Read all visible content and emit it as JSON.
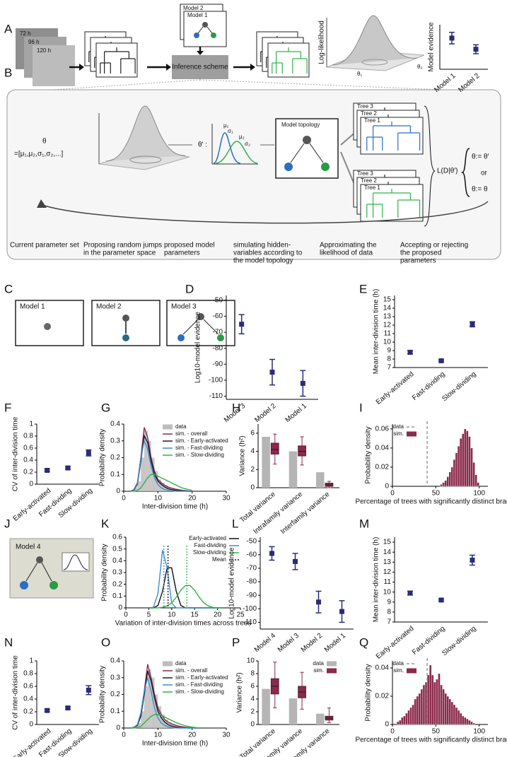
{
  "panel_labels": [
    "A",
    "B",
    "C",
    "D",
    "E",
    "F",
    "G",
    "H",
    "I",
    "J",
    "K",
    "L",
    "M",
    "N",
    "O",
    "P",
    "Q"
  ],
  "diagram_a": {
    "time_labels": [
      "72 h",
      "96 h",
      "120 h"
    ],
    "models": [
      "Model 2",
      "Model 1"
    ],
    "inference": "Inference scheme",
    "surface_label": "Log-likelihood",
    "theta1": "θ₁",
    "theta2": "θ₂"
  },
  "diagram_b": {
    "theta": "θ",
    "theta_vector": "=[μ₁,μ₂,σ₁,σ₂,...]",
    "theta_prime": "θ′ :",
    "gauss_labels": [
      "μ₁",
      "σ₁",
      "μ₂",
      "σ₂"
    ],
    "topology": "Model topology",
    "trees": [
      "Tree 3",
      "Tree 2",
      "Tree 1"
    ],
    "likelihood": "L(D|θ′)",
    "accept": "θ:= θ′",
    "or": "or",
    "reject": "θ:= θ",
    "captions": [
      [
        "Current parameter set"
      ],
      [
        "Proposing random jumps",
        "in the parameter space"
      ],
      [
        "proposed model",
        "parameters"
      ],
      [
        "simulating hidden-",
        "variables according to",
        "the model topology"
      ],
      [
        "Approximating the",
        "likelihood of data"
      ],
      [
        "Accepting or rejecting",
        "the proposed",
        "parameters"
      ]
    ]
  },
  "models_c": [
    "Model 1",
    "Model 2",
    "Model 3"
  ],
  "model_j": "Model 4",
  "chart_data": [
    {
      "type": "dot",
      "ylabel": "Model evidence",
      "categories": [
        "Model 1",
        "Model 2"
      ],
      "values": [
        0.7,
        0.45
      ],
      "errors": [
        0.13,
        0.1
      ],
      "ylim": [
        0,
        1
      ],
      "color": "#2b2b7a"
    },
    {
      "type": "dot",
      "ylabel": "Log10-model evidence",
      "categories": [
        "Model 3",
        "Model 2",
        "Model 1"
      ],
      "values": [
        -65,
        -95,
        -102
      ],
      "errors": [
        6,
        8,
        8
      ],
      "ylim": [
        -112,
        -47
      ],
      "yticks": [
        -50,
        -60,
        -70,
        -80,
        -90,
        -100,
        -110
      ],
      "color": "#2b2b7a"
    },
    {
      "type": "dot",
      "ylabel": "Mean inter-division time (h)",
      "categories": [
        "Early-activated",
        "Fast-dividing",
        "Slow-dividing"
      ],
      "values": [
        8.8,
        7.8,
        12.1
      ],
      "errors": [
        0.2,
        0.1,
        0.3
      ],
      "ylim": [
        7,
        15.5
      ],
      "yticks": [
        7,
        8,
        9,
        10,
        11,
        12,
        13,
        14,
        15
      ],
      "color": "#2b2b7a"
    },
    {
      "type": "dot",
      "ylabel": "CV of inter-division time",
      "categories": [
        "Early-activated",
        "Fast-dividing",
        "Slow-dividing"
      ],
      "values": [
        0.23,
        0.27,
        0.52
      ],
      "errors": [
        0.02,
        0.02,
        0.05
      ],
      "ylim": [
        0,
        1
      ],
      "yticks": [
        0,
        0.2,
        0.4,
        0.6,
        0.8,
        1
      ],
      "color": "#2b2b7a"
    },
    {
      "type": "hist",
      "ylabel": "Probability density",
      "xlabel": "Inter-division time (h)",
      "xlim": [
        0,
        30
      ],
      "xticks": [
        0,
        10,
        20,
        30
      ],
      "ylim": [
        0,
        0.4
      ],
      "yticks": [
        0,
        0.1,
        0.2,
        0.3,
        0.4
      ],
      "hist": {
        "name": "data",
        "color": "#bdbdbd",
        "bins": [
          2,
          3,
          4,
          5,
          6,
          7,
          8,
          9,
          10,
          11,
          12,
          13,
          14,
          15,
          16,
          17,
          18,
          19,
          20
        ],
        "counts": [
          0.005,
          0.02,
          0.06,
          0.2,
          0.36,
          0.3,
          0.2,
          0.12,
          0.07,
          0.05,
          0.035,
          0.025,
          0.02,
          0.015,
          0.01,
          0.008,
          0.005,
          0.003
        ]
      },
      "x": [
        2,
        3,
        4,
        5,
        6,
        7,
        8,
        9,
        10,
        11,
        12,
        13,
        14,
        15,
        16,
        17,
        18,
        19,
        20
      ],
      "series": [
        {
          "name": "sim. - overall",
          "color": "#8b2a4a",
          "values": [
            0,
            0.01,
            0.05,
            0.2,
            0.38,
            0.32,
            0.2,
            0.12,
            0.07,
            0.05,
            0.035,
            0.025,
            0.018,
            0.013,
            0.009,
            0.006,
            0.004,
            0.002,
            0.001
          ]
        },
        {
          "name": "sim. - Early-activated",
          "color": "#1a1a2e",
          "values": [
            0,
            0.005,
            0.04,
            0.18,
            0.33,
            0.29,
            0.18,
            0.1,
            0.06,
            0.04,
            0.025,
            0.015,
            0.01,
            0.006,
            0.004,
            0.002,
            0.001,
            0,
            0
          ]
        },
        {
          "name": "sim. - Fast-dividing",
          "color": "#3a8fd0",
          "values": [
            0,
            0.005,
            0.04,
            0.2,
            0.3,
            0.25,
            0.15,
            0.08,
            0.04,
            0.02,
            0.01,
            0.006,
            0.003,
            0.001,
            0,
            0,
            0,
            0,
            0
          ]
        },
        {
          "name": "sim. - Slow-dividing",
          "color": "#2fb34a",
          "values": [
            0,
            0,
            0.005,
            0.02,
            0.05,
            0.08,
            0.1,
            0.1,
            0.09,
            0.08,
            0.07,
            0.06,
            0.05,
            0.04,
            0.03,
            0.02,
            0.015,
            0.01,
            0.005
          ]
        }
      ]
    },
    {
      "type": "boxbar",
      "ylabel": "Variance (h²)",
      "categories": [
        "Total variance",
        "Intrafamily variance",
        "Interfamily variance"
      ],
      "ylim": [
        0,
        7
      ],
      "yticks": [
        0,
        2,
        4,
        6
      ],
      "bars": {
        "color": "#b5b5b5",
        "values": [
          5.6,
          4.0,
          1.7
        ]
      },
      "boxes": {
        "color": "#8b2a4a",
        "median": [
          4.2,
          4.0,
          0.3
        ],
        "q1": [
          3.7,
          3.5,
          0.15
        ],
        "q3": [
          4.9,
          4.6,
          0.5
        ],
        "low": [
          2.6,
          2.5,
          0
        ],
        "high": [
          5.9,
          5.6,
          0.7
        ]
      }
    },
    {
      "type": "hist",
      "ylabel": "Probability density",
      "xlabel": "Percentage of trees with significantly distinct branches",
      "xlim": [
        0,
        110
      ],
      "xticks": [
        0,
        50,
        100
      ],
      "ylim": [
        0,
        0.065
      ],
      "yticks": [
        0,
        0.02,
        0.04,
        0.06
      ],
      "reference": {
        "name": "data",
        "value": 40,
        "color": "#999999"
      },
      "hist": {
        "name": "sim.",
        "color": "#8b2a4a",
        "bins": [
          55,
          57.5,
          60,
          62.5,
          65,
          67.5,
          70,
          72.5,
          75,
          77.5,
          80,
          82.5,
          85,
          87.5,
          90,
          92.5,
          95,
          97.5,
          100
        ],
        "counts": [
          0.002,
          0.004,
          0.006,
          0.01,
          0.015,
          0.02,
          0.028,
          0.035,
          0.042,
          0.05,
          0.055,
          0.06,
          0.058,
          0.052,
          0.04,
          0.025,
          0.012,
          0.004
        ]
      }
    },
    {
      "type": "density",
      "ylabel": "Probability density",
      "xlabel": "Variation of inter-division times across trees",
      "xlim": [
        0,
        25
      ],
      "xticks": [
        0,
        5,
        10,
        15,
        20,
        25
      ],
      "ylim": [
        0,
        0.6
      ],
      "yticks": [
        0,
        0.1,
        0.2,
        0.3,
        0.4,
        0.5,
        0.6
      ],
      "x": [
        5,
        6,
        7,
        8,
        9,
        10,
        11,
        12,
        13,
        14,
        15,
        16,
        17,
        18,
        19,
        20,
        21
      ],
      "series": [
        {
          "name": "Early-activated",
          "color": "#111111",
          "values": [
            0,
            0,
            0.02,
            0.14,
            0.34,
            0.34,
            0.14,
            0.02,
            0,
            0,
            0,
            0,
            0,
            0,
            0,
            0,
            0
          ]
        },
        {
          "name": "Fast-dividing",
          "color": "#3a8fd0",
          "values": [
            0,
            0.005,
            0.12,
            0.49,
            0.34,
            0.04,
            0,
            0,
            0,
            0,
            0,
            0,
            0,
            0,
            0,
            0,
            0
          ]
        },
        {
          "name": "Slow-dividing",
          "color": "#2fb34a",
          "values": [
            0,
            0,
            0,
            0.005,
            0.016,
            0.043,
            0.09,
            0.15,
            0.19,
            0.19,
            0.15,
            0.09,
            0.043,
            0.016,
            0.004,
            0,
            0
          ]
        }
      ],
      "mean_label": "Mean",
      "means": [
        {
          "value": 9.2,
          "color": "#111111"
        },
        {
          "value": 8.3,
          "color": "#3a8fd0"
        },
        {
          "value": 13.3,
          "color": "#2fb34a"
        }
      ]
    },
    {
      "type": "dot",
      "ylabel": "Log10-model evidence",
      "categories": [
        "Model 4",
        "Model 3",
        "Model 2",
        "Model 1"
      ],
      "values": [
        -59,
        -65,
        -95,
        -102
      ],
      "errors": [
        5,
        6,
        8,
        8
      ],
      "ylim": [
        -115,
        -47
      ],
      "yticks": [
        -50,
        -60,
        -70,
        -80,
        -90,
        -100,
        -110
      ],
      "color": "#2b2b7a"
    },
    {
      "type": "dot",
      "ylabel": "Mean inter-division time (h)",
      "categories": [
        "Early-activated",
        "Fast-dividing",
        "Slow-dividing"
      ],
      "values": [
        9.9,
        9.2,
        13.2
      ],
      "errors": [
        0.2,
        0.1,
        0.5
      ],
      "ylim": [
        7,
        15.5
      ],
      "yticks": [
        7,
        8,
        9,
        10,
        11,
        12,
        13,
        14,
        15
      ],
      "color": "#2b2b7a"
    },
    {
      "type": "dot",
      "ylabel": "CV of inter-division time",
      "categories": [
        "Early-activated",
        "Fast-dividing",
        "Slow-dividing"
      ],
      "values": [
        0.22,
        0.26,
        0.54
      ],
      "errors": [
        0.02,
        0.02,
        0.07
      ],
      "ylim": [
        0,
        1
      ],
      "yticks": [
        0,
        0.2,
        0.4,
        0.6,
        0.8,
        1
      ],
      "color": "#2b2b7a"
    },
    {
      "type": "hist",
      "ylabel": "Probability density",
      "xlabel": "Inter-division time (h)",
      "xlim": [
        0,
        30
      ],
      "xticks": [
        0,
        10,
        20,
        30
      ],
      "ylim": [
        0,
        0.4
      ],
      "yticks": [
        0,
        0.1,
        0.2,
        0.3,
        0.4
      ],
      "hist": {
        "name": "data",
        "color": "#bdbdbd",
        "bins": [
          2,
          3,
          4,
          5,
          6,
          7,
          8,
          9,
          10,
          11,
          12,
          13,
          14,
          15,
          16,
          17,
          18,
          19,
          20,
          21,
          22
        ],
        "counts": [
          0.005,
          0.01,
          0.03,
          0.1,
          0.25,
          0.35,
          0.3,
          0.2,
          0.13,
          0.08,
          0.05,
          0.035,
          0.025,
          0.018,
          0.012,
          0.008,
          0.005,
          0.003,
          0.002,
          0.001
        ]
      },
      "x": [
        2,
        3,
        4,
        5,
        6,
        7,
        8,
        9,
        10,
        11,
        12,
        13,
        14,
        15,
        16,
        17,
        18,
        19,
        20,
        21,
        22
      ],
      "series": [
        {
          "name": "sim. - overall",
          "color": "#8b2a4a",
          "values": [
            0,
            0.005,
            0.02,
            0.08,
            0.22,
            0.38,
            0.3,
            0.2,
            0.12,
            0.08,
            0.05,
            0.035,
            0.025,
            0.018,
            0.012,
            0.008,
            0.005,
            0.003,
            0.002,
            0.001,
            0
          ]
        },
        {
          "name": "sim. - Early-activated",
          "color": "#1a1a2e",
          "values": [
            0,
            0.003,
            0.015,
            0.07,
            0.2,
            0.34,
            0.28,
            0.18,
            0.1,
            0.06,
            0.035,
            0.02,
            0.012,
            0.007,
            0.004,
            0.002,
            0.001,
            0,
            0,
            0,
            0
          ]
        },
        {
          "name": "sim. - Fast-dividing",
          "color": "#3a8fd0",
          "values": [
            0,
            0.003,
            0.02,
            0.09,
            0.22,
            0.3,
            0.22,
            0.12,
            0.06,
            0.03,
            0.015,
            0.007,
            0.003,
            0.001,
            0,
            0,
            0,
            0,
            0,
            0,
            0
          ]
        },
        {
          "name": "sim. - Slow-dividing",
          "color": "#2fb34a",
          "values": [
            0,
            0,
            0.003,
            0.01,
            0.03,
            0.05,
            0.07,
            0.08,
            0.08,
            0.075,
            0.065,
            0.055,
            0.045,
            0.035,
            0.027,
            0.02,
            0.014,
            0.009,
            0.006,
            0.003,
            0.001
          ]
        }
      ]
    },
    {
      "type": "boxbar",
      "ylabel": "Variance (h²)",
      "categories": [
        "Total variance",
        "Intrafamily variance",
        "Interfamily variance"
      ],
      "ylim": [
        0,
        10
      ],
      "yticks": [
        0,
        2,
        4,
        6,
        8,
        10
      ],
      "bars": {
        "name": "data",
        "color": "#b5b5b5",
        "values": [
          5.6,
          4.1,
          1.7
        ]
      },
      "boxes": {
        "name": "sim.",
        "color": "#8b2a4a",
        "median": [
          6,
          5.1,
          1.0
        ],
        "q1": [
          4.8,
          4.2,
          0.7
        ],
        "q3": [
          7.2,
          6.0,
          1.3
        ],
        "low": [
          2.6,
          2.4,
          0.3
        ],
        "high": [
          9.8,
          8.2,
          2.6
        ]
      }
    },
    {
      "type": "hist",
      "ylabel": "Probability density",
      "xlabel": "Percentage of trees with significantly distinct branches",
      "xlim": [
        0,
        110
      ],
      "xticks": [
        0,
        50,
        100
      ],
      "ylim": [
        0,
        0.045
      ],
      "yticks": [
        0,
        0.02,
        0.04
      ],
      "reference": {
        "name": "data",
        "value": 40,
        "color": "#999999"
      },
      "hist": {
        "name": "sim.",
        "color": "#8b2a4a",
        "bins": [
          5,
          7.5,
          10,
          12.5,
          15,
          17.5,
          20,
          22.5,
          25,
          27.5,
          30,
          32.5,
          35,
          37.5,
          40,
          42.5,
          45,
          47.5,
          50,
          52.5,
          55,
          57.5,
          60,
          62.5,
          65,
          67.5,
          70,
          72.5,
          75,
          77.5,
          80,
          82.5,
          85,
          87.5,
          90,
          92.5,
          95
        ],
        "counts": [
          0.002,
          0.003,
          0.005,
          0.006,
          0.008,
          0.01,
          0.012,
          0.014,
          0.018,
          0.02,
          0.022,
          0.025,
          0.028,
          0.03,
          0.035,
          0.042,
          0.035,
          0.03,
          0.032,
          0.036,
          0.028,
          0.025,
          0.022,
          0.02,
          0.018,
          0.016,
          0.014,
          0.012,
          0.01,
          0.008,
          0.006,
          0.005,
          0.004,
          0.003,
          0.002,
          0.001
        ]
      }
    }
  ]
}
